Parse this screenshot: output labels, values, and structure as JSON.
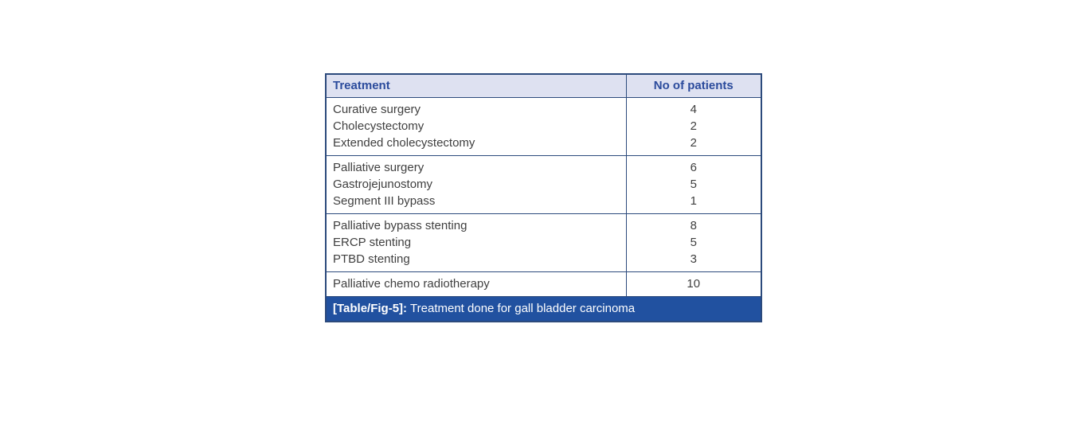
{
  "colors": {
    "border": "#2c4a7c",
    "header_bg": "#dee1f1",
    "header_text": "#2b4b9c",
    "body_text": "#3f3f3f",
    "caption_bg": "#2151a0",
    "caption_text": "#ffffff"
  },
  "table": {
    "columns": [
      {
        "label": "Treatment"
      },
      {
        "label": "No of patients"
      }
    ],
    "groups": [
      {
        "rows": [
          {
            "treatment": "Curative surgery",
            "patients": "4"
          },
          {
            "treatment": "Cholecystectomy",
            "patients": "2"
          },
          {
            "treatment": "Extended cholecystectomy",
            "patients": "2"
          }
        ]
      },
      {
        "rows": [
          {
            "treatment": "Palliative surgery",
            "patients": "6"
          },
          {
            "treatment": "Gastrojejunostomy",
            "patients": "5"
          },
          {
            "treatment": "Segment III bypass",
            "patients": "1"
          }
        ]
      },
      {
        "rows": [
          {
            "treatment": "Palliative bypass stenting",
            "patients": "8"
          },
          {
            "treatment": "ERCP stenting",
            "patients": "5"
          },
          {
            "treatment": "PTBD stenting",
            "patients": "3"
          }
        ]
      },
      {
        "rows": [
          {
            "treatment": "Palliative chemo radiotherapy",
            "patients": "10"
          }
        ]
      }
    ],
    "caption": {
      "label": "[Table/Fig-5]:",
      "text": "Treatment done for gall bladder carcinoma"
    }
  }
}
